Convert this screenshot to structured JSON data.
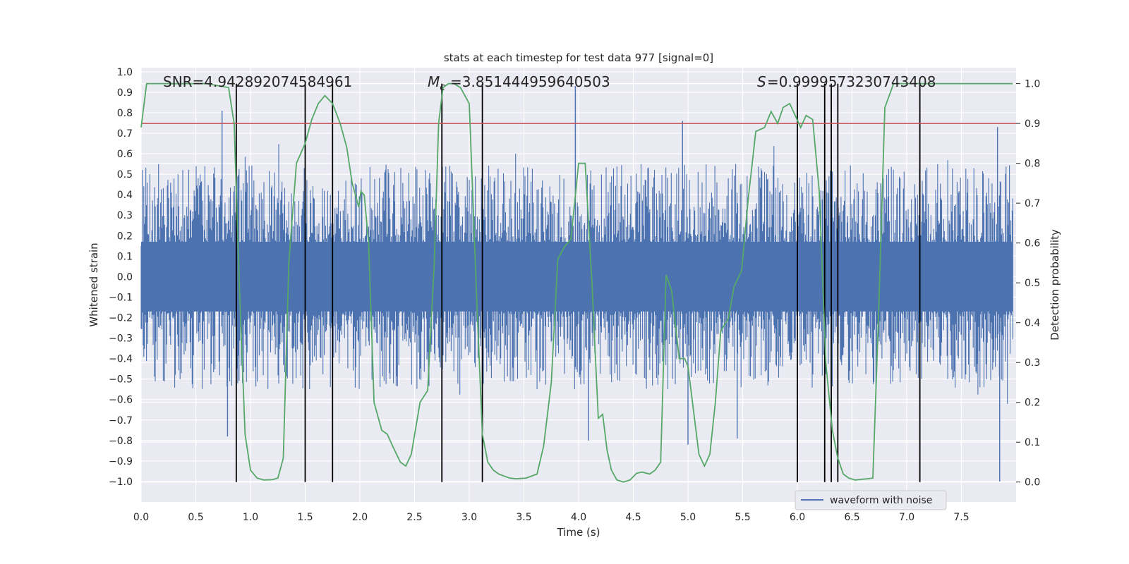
{
  "chart_data": {
    "type": "line",
    "title": "stats at each timestep for test data 977 [signal=0]",
    "xlabel": "Time (s)",
    "ylabel": "Whitened strain",
    "y2label": "Detection probability",
    "xlim": [
      0.0,
      8.0
    ],
    "ylim": [
      -1.1,
      1.02
    ],
    "y2lim": [
      -0.05,
      1.04
    ],
    "x_ticks": [
      0.0,
      0.5,
      1.0,
      1.5,
      2.0,
      2.5,
      3.0,
      3.5,
      4.0,
      4.5,
      5.0,
      5.5,
      6.0,
      6.5,
      7.0,
      7.5
    ],
    "x_tick_labels": [
      "0.0",
      "0.5",
      "1.0",
      "1.5",
      "2.0",
      "2.5",
      "3.0",
      "3.5",
      "4.0",
      "4.5",
      "5.0",
      "5.5",
      "6.0",
      "6.5",
      "7.0",
      "7.5"
    ],
    "y_ticks": [
      1.0,
      0.9,
      0.8,
      0.7,
      0.6,
      0.5,
      0.4,
      0.3,
      0.2,
      0.1,
      0.0,
      -0.1,
      -0.2,
      -0.3,
      -0.4,
      -0.5,
      -0.6,
      -0.7,
      -0.8,
      -0.9,
      -1.0
    ],
    "y_tick_labels": [
      "1.0",
      "0.9",
      "0.8",
      "0.7",
      "0.6",
      "0.5",
      "0.4",
      "0.3",
      "0.2",
      "0.1",
      "0.0",
      "−0.1",
      "−0.2",
      "−0.3",
      "−0.4",
      "−0.5",
      "−0.6",
      "−0.7",
      "−0.8",
      "−0.9",
      "−1.0"
    ],
    "y2_ticks": [
      1.0,
      0.9,
      0.8,
      0.7,
      0.6,
      0.5,
      0.4,
      0.3,
      0.2,
      0.1,
      0.0
    ],
    "y2_tick_labels": [
      "1.0",
      "0.9",
      "0.8",
      "0.7",
      "0.6",
      "0.5",
      "0.4",
      "0.3",
      "0.2",
      "0.1",
      "0.0"
    ],
    "grid": true,
    "legend": {
      "entries": [
        "waveform with noise"
      ],
      "placement": "lower-right"
    },
    "annotations": {
      "snr": "SNR=4.942892074584961",
      "mc": "=3.851444959640503",
      "s": "=0.9999573230743408"
    },
    "threshold": 0.9,
    "event_lines_x": [
      0.87,
      1.5,
      1.75,
      2.75,
      3.12,
      6.0,
      6.25,
      6.31,
      6.37,
      7.12
    ],
    "waveform_envelope": {
      "x_range": [
        0.0,
        8.0
      ],
      "typical_max": 0.45,
      "typical_min": -0.45,
      "spikes": [
        {
          "x": 0.74,
          "y": 0.81
        },
        {
          "x": 0.79,
          "y": -0.78
        },
        {
          "x": 3.97,
          "y": 0.93
        },
        {
          "x": 5.0,
          "y": -0.82
        },
        {
          "x": 5.45,
          "y": -0.79
        },
        {
          "x": 7.85,
          "y": -1.0
        },
        {
          "x": 7.83,
          "y": 0.73
        },
        {
          "x": 4.95,
          "y": 0.76
        },
        {
          "x": 4.09,
          "y": -0.8
        }
      ]
    },
    "series": [
      {
        "name": "",
        "axis": "right",
        "color": "#55a868",
        "x": [
          0.0,
          0.05,
          0.3,
          0.6,
          0.8,
          0.85,
          0.9,
          0.95,
          1.0,
          1.06,
          1.12,
          1.2,
          1.25,
          1.3,
          1.35,
          1.42,
          1.5,
          1.56,
          1.62,
          1.68,
          1.75,
          1.82,
          1.88,
          1.93,
          1.96,
          1.99,
          2.01,
          2.04,
          2.08,
          2.13,
          2.2,
          2.25,
          2.3,
          2.37,
          2.42,
          2.47,
          2.55,
          2.62,
          2.68,
          2.72,
          2.76,
          2.81,
          2.86,
          2.92,
          3.0,
          3.07,
          3.12,
          3.17,
          3.22,
          3.27,
          3.32,
          3.37,
          3.43,
          3.52,
          3.62,
          3.68,
          3.75,
          3.81,
          3.87,
          3.93,
          4.0,
          4.06,
          4.12,
          4.18,
          4.22,
          4.26,
          4.3,
          4.35,
          4.41,
          4.47,
          4.53,
          4.58,
          4.65,
          4.7,
          4.75,
          4.8,
          4.85,
          4.92,
          4.97,
          5.0,
          5.05,
          5.1,
          5.15,
          5.2,
          5.25,
          5.3,
          5.37,
          5.42,
          5.49,
          5.55,
          5.62,
          5.7,
          5.76,
          5.82,
          5.87,
          5.93,
          5.98,
          6.03,
          6.08,
          6.14,
          6.2,
          6.26,
          6.32,
          6.37,
          6.42,
          6.47,
          6.53,
          6.59,
          6.64,
          6.69,
          6.74,
          6.8,
          6.88,
          6.98,
          7.05,
          7.12,
          7.19,
          7.24,
          7.3,
          7.45,
          7.65,
          7.97
        ],
        "values": [
          0.89,
          1.0,
          1.0,
          1.0,
          0.99,
          0.9,
          0.48,
          0.12,
          0.03,
          0.01,
          0.005,
          0.006,
          0.01,
          0.06,
          0.55,
          0.8,
          0.85,
          0.91,
          0.95,
          0.97,
          0.95,
          0.9,
          0.84,
          0.75,
          0.72,
          0.69,
          0.73,
          0.72,
          0.6,
          0.2,
          0.13,
          0.12,
          0.09,
          0.05,
          0.04,
          0.07,
          0.2,
          0.23,
          0.55,
          0.9,
          0.99,
          1.0,
          1.0,
          0.99,
          0.95,
          0.45,
          0.12,
          0.05,
          0.03,
          0.02,
          0.015,
          0.01,
          0.008,
          0.01,
          0.02,
          0.09,
          0.25,
          0.56,
          0.59,
          0.61,
          0.8,
          0.8,
          0.51,
          0.16,
          0.17,
          0.08,
          0.03,
          0.005,
          0.0,
          0.005,
          0.022,
          0.025,
          0.02,
          0.03,
          0.05,
          0.52,
          0.48,
          0.31,
          0.31,
          0.29,
          0.18,
          0.07,
          0.04,
          0.07,
          0.2,
          0.38,
          0.41,
          0.49,
          0.53,
          0.71,
          0.88,
          0.89,
          0.93,
          0.9,
          0.94,
          0.95,
          0.92,
          0.89,
          0.92,
          0.91,
          0.73,
          0.3,
          0.13,
          0.06,
          0.02,
          0.01,
          0.005,
          0.007,
          0.008,
          0.01,
          0.4,
          0.94,
          1.0,
          1.0,
          1.0,
          1.0,
          1.0,
          1.0,
          1.0,
          1.0,
          1.0,
          1.0
        ]
      }
    ],
    "colors": {
      "waveform": "#4c72b0",
      "probability": "#55a868",
      "threshold": "#c44e52",
      "event_lines": "#000000",
      "background": "#eaeaf2",
      "grid": "#ffffff"
    }
  }
}
